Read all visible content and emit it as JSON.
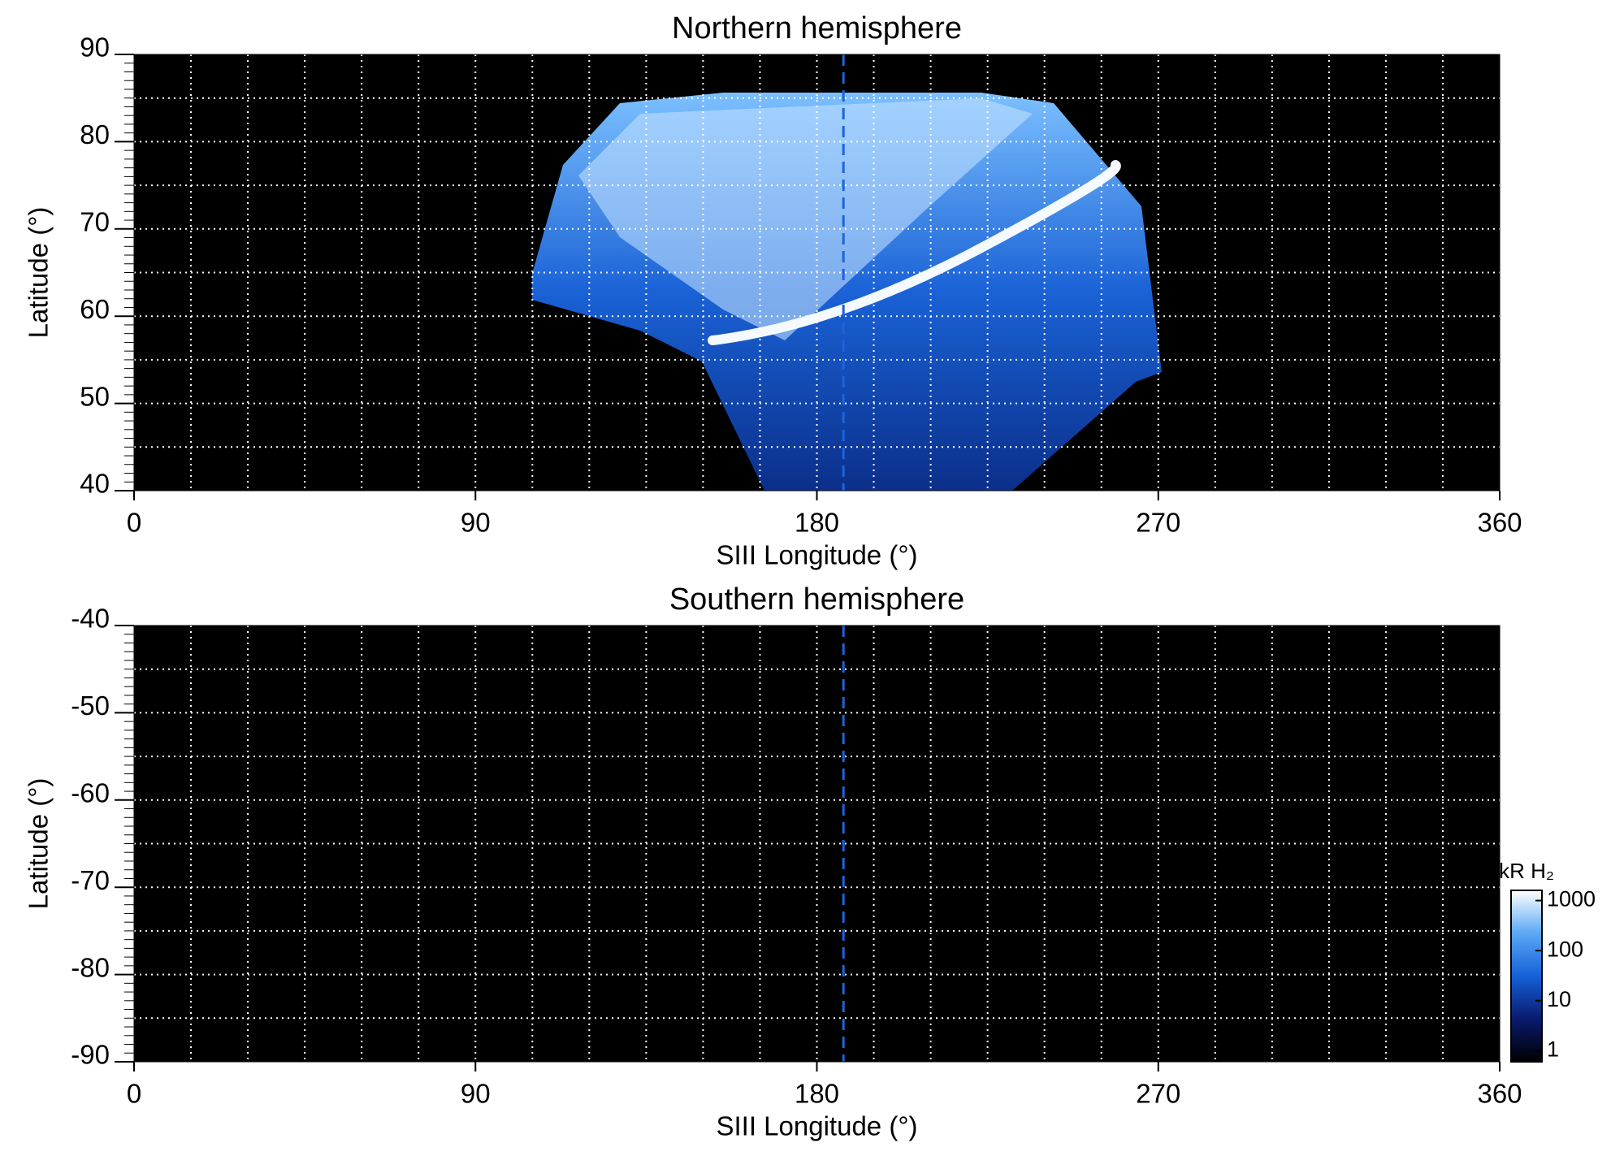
{
  "chart_data": [
    {
      "type": "heatmap",
      "title": "Northern hemisphere",
      "x_label": "SIII Longitude (°)",
      "y_label": "Latitude (°)",
      "xlim": [
        0,
        360
      ],
      "xticks": [
        0,
        90,
        180,
        270,
        360
      ],
      "ylim": [
        40,
        90
      ],
      "yticks": [
        40,
        50,
        60,
        70,
        80,
        90
      ],
      "grid": true,
      "grid_x_step": 15,
      "grid_y_step": 5,
      "yminor_step": 1,
      "background": "#000000",
      "reference_x": 187,
      "reference_color": "#1f63d8"
    },
    {
      "type": "heatmap",
      "title": "Southern hemisphere",
      "x_label": "SIII Longitude (°)",
      "y_label": "Latitude (°)",
      "xlim": [
        0,
        360
      ],
      "xticks": [
        0,
        90,
        180,
        270,
        360
      ],
      "ylim": [
        -90,
        -40
      ],
      "yticks": [
        -90,
        -80,
        -70,
        -60,
        -50,
        -40
      ],
      "grid": true,
      "grid_x_step": 15,
      "grid_y_step": 5,
      "yminor_step": 1,
      "background": "#000000",
      "reference_x": 187,
      "reference_color": "#1f63d8",
      "colorbar": {
        "label": "kR H₂",
        "log": true,
        "lim": [
          0.6,
          1600
        ],
        "ticks": [
          1,
          10,
          100,
          1000
        ],
        "colors": [
          "#000000",
          "#0a1a6e",
          "#1560d8",
          "#5aa8f5",
          "#ffffff"
        ]
      }
    }
  ]
}
